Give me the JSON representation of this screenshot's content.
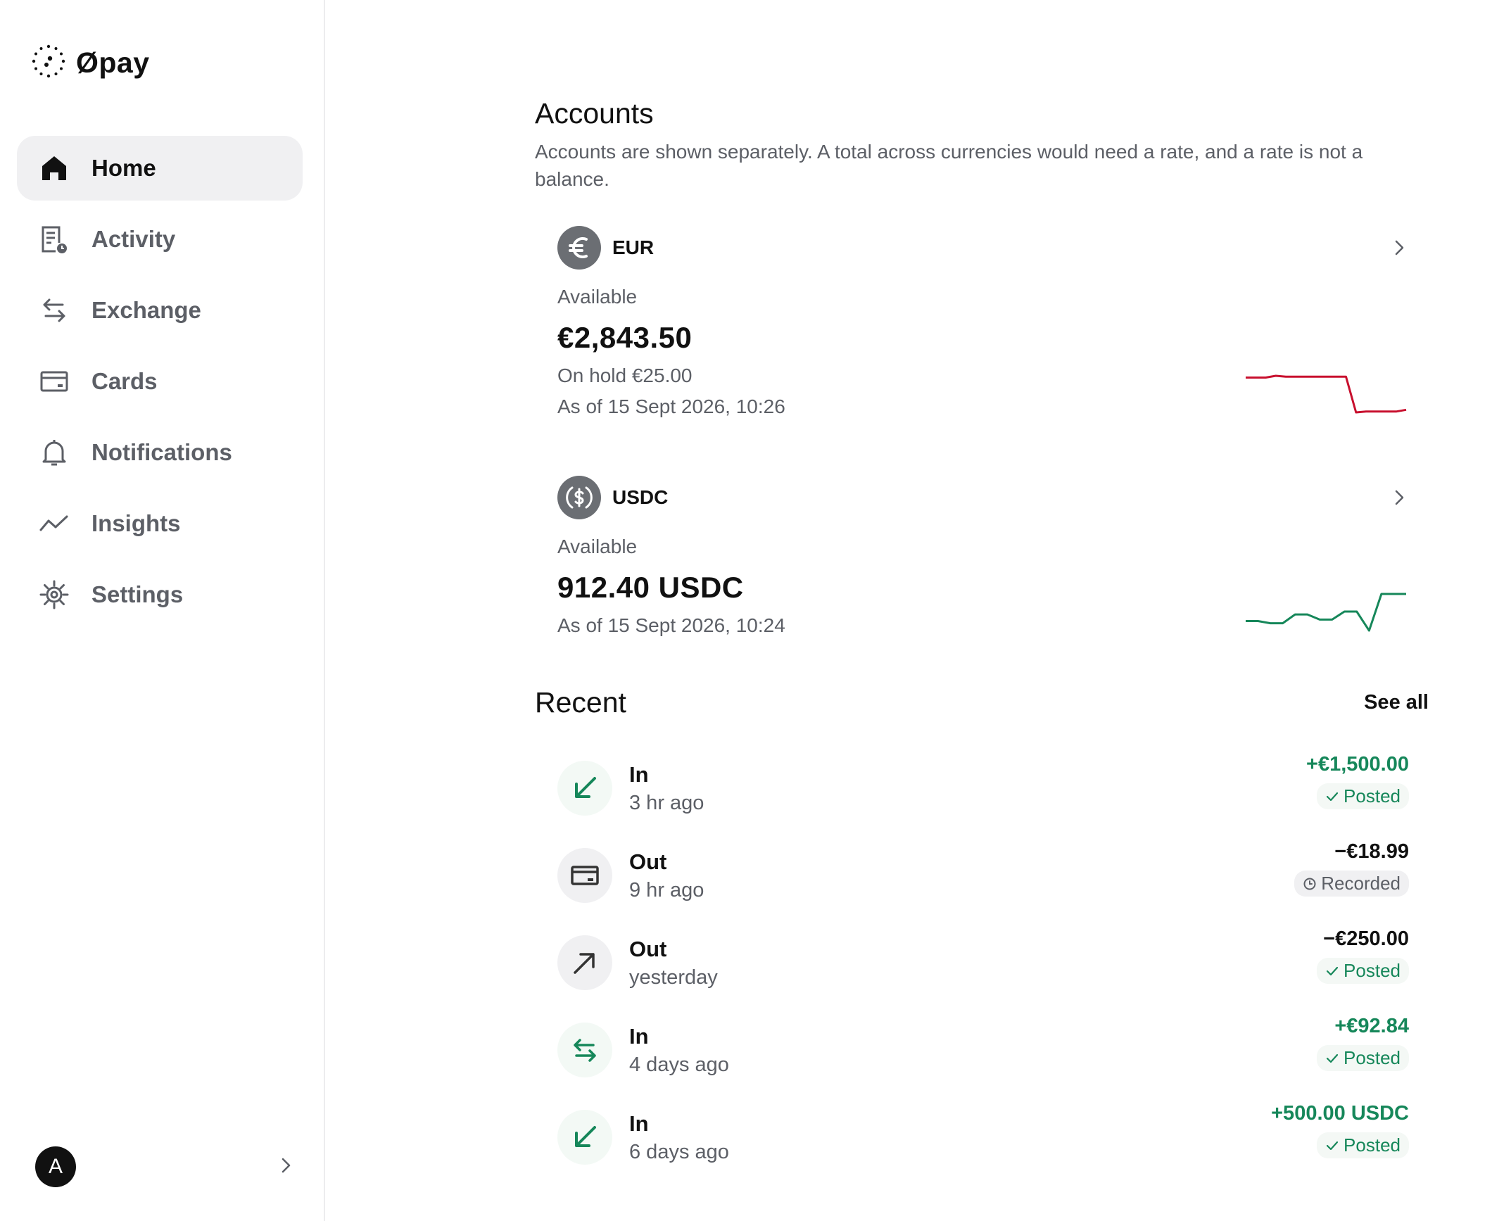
{
  "app": {
    "name": "Øpay"
  },
  "sidebar": {
    "items": [
      {
        "label": "Home",
        "icon": "home-icon",
        "active": true
      },
      {
        "label": "Activity",
        "icon": "activity-icon",
        "active": false
      },
      {
        "label": "Exchange",
        "icon": "exchange-icon",
        "active": false
      },
      {
        "label": "Cards",
        "icon": "card-icon",
        "active": false
      },
      {
        "label": "Notifications",
        "icon": "bell-icon",
        "active": false
      },
      {
        "label": "Insights",
        "icon": "trend-icon",
        "active": false
      },
      {
        "label": "Settings",
        "icon": "gear-icon",
        "active": false
      }
    ],
    "avatar_initial": "A"
  },
  "accounts": {
    "title": "Accounts",
    "description": "Accounts are shown separately. A total across currencies would need a rate, and a rate is not a balance.",
    "items": [
      {
        "code": "EUR",
        "icon": "euro-icon",
        "available_label": "Available",
        "amount": "€2,843.50",
        "on_hold": "On hold €25.00",
        "as_of": "As of 15 Sept 2026, 10:26",
        "trend_color": "#c8102e",
        "trend": [
          5,
          5,
          5,
          5.2,
          5.1,
          5.1,
          5.1,
          5.1,
          5.1,
          5.1,
          5.1,
          1,
          1.1,
          1.1,
          1.1,
          1.1,
          1.3
        ]
      },
      {
        "code": "USDC",
        "icon": "usdc-icon",
        "available_label": "Available",
        "amount": "912.40 USDC",
        "as_of": "As of 15 Sept 2026, 10:24",
        "trend_color": "#16875a",
        "trend": [
          1.3,
          1.3,
          1,
          1,
          2.2,
          2.2,
          1.5,
          1.5,
          2.6,
          2.6,
          0,
          5,
          5,
          5
        ]
      }
    ]
  },
  "recent": {
    "title": "Recent",
    "see_all": "See all",
    "items": [
      {
        "direction": "In",
        "time": "3 hr ago",
        "amount": "+€1,500.00",
        "status": "Posted",
        "icon": "arrow-down-left-icon",
        "positive": true
      },
      {
        "direction": "Out",
        "time": "9 hr ago",
        "amount": "−€18.99",
        "status": "Recorded",
        "icon": "card-icon",
        "positive": false
      },
      {
        "direction": "Out",
        "time": "yesterday",
        "amount": "−€250.00",
        "status": "Posted",
        "icon": "arrow-up-right-icon",
        "positive": false
      },
      {
        "direction": "In",
        "time": "4 days ago",
        "amount": "+€92.84",
        "status": "Posted",
        "icon": "exchange-icon",
        "positive": true
      },
      {
        "direction": "In",
        "time": "6 days ago",
        "amount": "+500.00 USDC",
        "status": "Posted",
        "icon": "arrow-down-left-icon",
        "positive": true
      }
    ]
  },
  "colors": {
    "positive": "#16875a",
    "negative_trend": "#c8102e",
    "muted": "#5c5f66"
  }
}
